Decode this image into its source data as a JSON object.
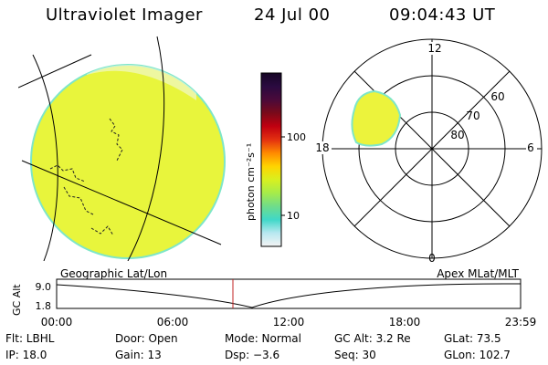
{
  "header": {
    "title": "Ultraviolet Imager",
    "date": "24 Jul 00",
    "time": "09:04:43 UT"
  },
  "colorbar": {
    "unit_label": "photon cm⁻²s⁻¹",
    "ticks": [
      "100",
      "10"
    ],
    "colors_top_to_bottom": [
      "#160625",
      "#2a0a40",
      "#4a0a3a",
      "#7a0a1a",
      "#c00010",
      "#e33010",
      "#ff8a00",
      "#ffd400",
      "#d8f020",
      "#a6ec4a",
      "#6fdc8a",
      "#40d8c8",
      "#b8e8f0",
      "#f4f4f4"
    ]
  },
  "polar_plot": {
    "hour_labels": {
      "top": "12",
      "left": "18",
      "right": "6",
      "bottom": "0"
    },
    "lat_labels": [
      "60",
      "70",
      "80"
    ]
  },
  "timeline": {
    "left_label": "Geographic Lat/Lon",
    "right_label": "Apex MLat/MLT",
    "y_axis_label": "GC Alt",
    "y_ticks": [
      "9.0",
      "1.8"
    ],
    "x_ticks": [
      "00:00",
      "06:00",
      "12:00",
      "18:00",
      "23:59"
    ]
  },
  "info": {
    "row1": {
      "flt": "Flt: LBHL",
      "door": "Door: Open",
      "mode": "Mode: Normal",
      "gcalt": "GC Alt: 3.2 Re",
      "glat": "GLat: 73.5"
    },
    "row2": {
      "ip": "IP: 18.0",
      "gain": "Gain: 13",
      "dsp": "Dsp:  −3.6",
      "seq": "Seq: 30",
      "glon": "GLon: 102.7"
    }
  },
  "colors": {
    "disk_fill": "#e8f53c",
    "disk_edge": "#7ee6c8",
    "auroral_spot": "#ecf33c",
    "current_time_marker": "#c02020"
  }
}
